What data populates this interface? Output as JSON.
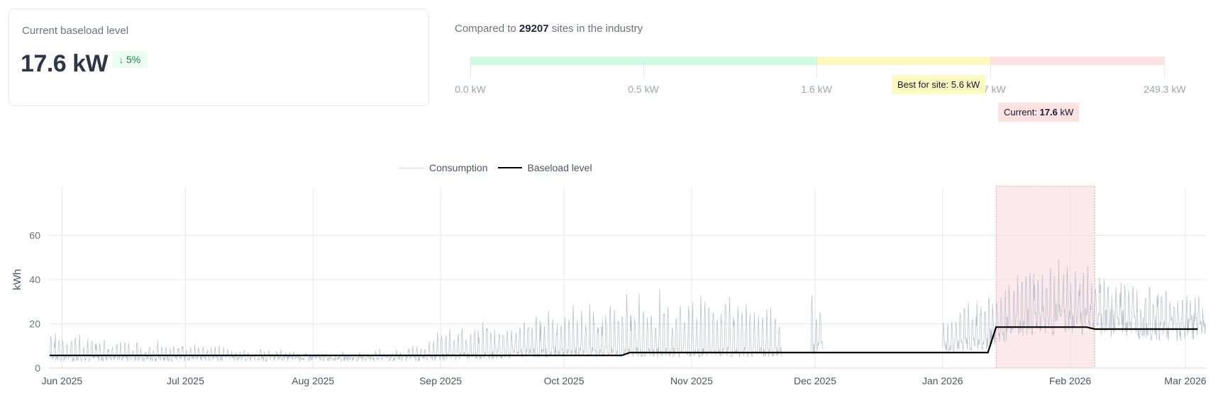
{
  "summary": {
    "title": "Current baseload level",
    "value": "17.6 kW",
    "change_arrow": "↓",
    "change": "5%",
    "change_color": "#15803d"
  },
  "comparison": {
    "prefix": "Compared to",
    "sites": "29207",
    "suffix": "sites in the industry",
    "range_labels": [
      "0.0 kW",
      "0.5 kW",
      "1.6 kW",
      "3.7 kW",
      "249.3 kW"
    ],
    "best_prefix": "Best for site:",
    "best_value": "5.6 kW",
    "current_prefix": "Current:",
    "current_value": "17.6",
    "current_unit": "kW",
    "colors": {
      "green": "#d1fae5",
      "yellow": "#fef9c3",
      "red": "#fee2e2"
    }
  },
  "chart_data": {
    "type": "line",
    "ylabel": "kWh",
    "ylim": [
      0,
      80
    ],
    "yticks": [
      0,
      20,
      40,
      60
    ],
    "xlim": [
      "2025-05-29",
      "2026-03-06"
    ],
    "xticks": [
      {
        "date": "2025-06-01",
        "label": "Jun 2025"
      },
      {
        "date": "2025-07-01",
        "label": "Jul 2025"
      },
      {
        "date": "2025-08-01",
        "label": "Aug 2025"
      },
      {
        "date": "2025-09-01",
        "label": "Sep 2025"
      },
      {
        "date": "2025-10-01",
        "label": "Oct 2025"
      },
      {
        "date": "2025-11-01",
        "label": "Nov 2025"
      },
      {
        "date": "2025-12-01",
        "label": "Dec 2025"
      },
      {
        "date": "2026-01-01",
        "label": "Jan 2026"
      },
      {
        "date": "2026-02-01",
        "label": "Feb 2026"
      },
      {
        "date": "2026-03-01",
        "label": "Mar 2026"
      }
    ],
    "legend_position": "top-center",
    "grid": true,
    "series": [
      {
        "name": "Consumption",
        "color": "#b6bcc8",
        "segments": [
          {
            "start": "2025-05-29",
            "end": "2025-11-23",
            "base": [
              5,
              5,
              5,
              5,
              5,
              5,
              5,
              5,
              5,
              6,
              7,
              8,
              8,
              8,
              8,
              8,
              8
            ],
            "peak": [
              20,
              15,
              12,
              13,
              9,
              8,
              6,
              7,
              10,
              24,
              25,
              26,
              32,
              35,
              35,
              33,
              30
            ]
          },
          {
            "start": "2025-11-30",
            "end": "2025-12-03",
            "base": [
              10,
              10
            ],
            "peak": [
              36,
              34
            ]
          },
          {
            "start": "2026-01-01",
            "end": "2026-03-06",
            "base": [
              10,
              14,
              25,
              24,
              23,
              20,
              20
            ],
            "peak": [
              24,
              38,
              47,
              45,
              44,
              40,
              37
            ]
          }
        ]
      },
      {
        "name": "Baseload level",
        "color": "#000000",
        "points": [
          [
            "2025-05-29",
            5.7
          ],
          [
            "2025-10-15",
            5.7
          ],
          [
            "2025-10-17",
            7.0
          ],
          [
            "2026-01-12",
            7.0
          ],
          [
            "2026-01-14",
            18.5
          ],
          [
            "2026-02-05",
            18.5
          ],
          [
            "2026-02-07",
            17.6
          ],
          [
            "2026-03-04",
            17.6
          ]
        ]
      }
    ],
    "highlight": {
      "start": "2026-01-14",
      "end": "2026-02-07",
      "color": "#fbe4e6",
      "border": "#e8a0a8"
    }
  }
}
